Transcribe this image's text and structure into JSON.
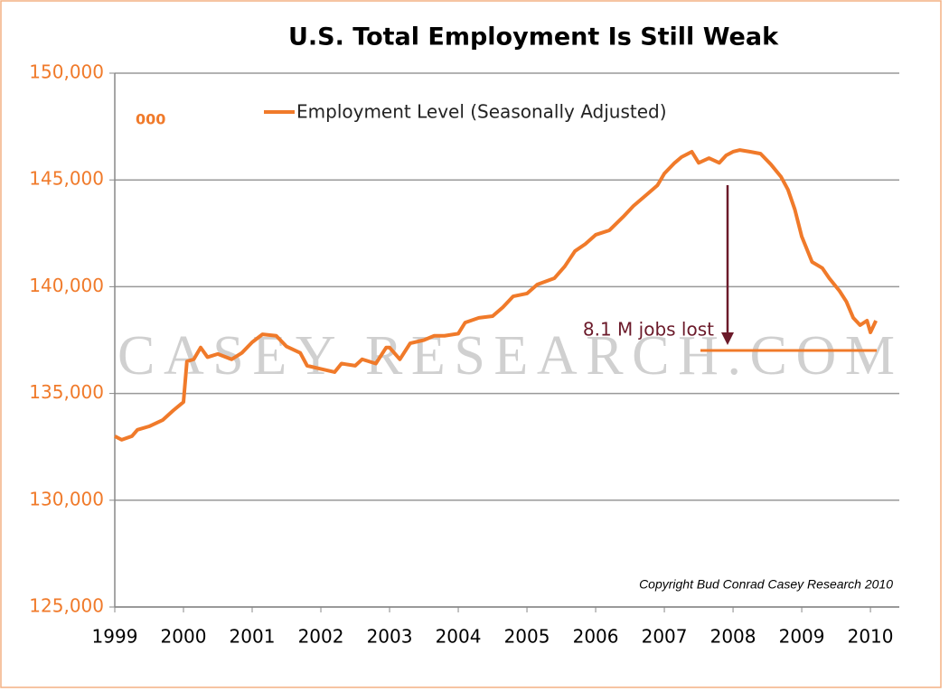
{
  "chart_data": {
    "type": "line",
    "title": "U.S. Total Employment Is Still Weak",
    "unit_label": "000",
    "annotation": "8.1 M jobs lost",
    "copyright": "Copyright Bud Conrad Casey Research 2010",
    "watermark": "CASEY RESEARCH.COM",
    "x": [
      1999.0,
      1999.1,
      1999.25,
      1999.33,
      1999.5,
      1999.7,
      1999.85,
      2000.0,
      2000.05,
      2000.15,
      2000.25,
      2000.35,
      2000.5,
      2000.7,
      2000.85,
      2001.0,
      2001.15,
      2001.35,
      2001.5,
      2001.7,
      2001.8,
      2002.0,
      2002.2,
      2002.3,
      2002.5,
      2002.6,
      2002.8,
      2002.95,
      2003.0,
      2003.15,
      2003.3,
      2003.5,
      2003.65,
      2003.8,
      2004.0,
      2004.1,
      2004.3,
      2004.5,
      2004.65,
      2004.8,
      2005.0,
      2005.15,
      2005.4,
      2005.55,
      2005.7,
      2005.85,
      2006.0,
      2006.2,
      2006.4,
      2006.55,
      2006.75,
      2006.9,
      2007.0,
      2007.15,
      2007.25,
      2007.4,
      2007.5,
      2007.65,
      2007.8,
      2007.9,
      2008.0,
      2008.1,
      2008.25,
      2008.4,
      2008.55,
      2008.7,
      2008.8,
      2008.9,
      2009.0,
      2009.15,
      2009.3,
      2009.4,
      2009.55,
      2009.65,
      2009.75,
      2009.85,
      2009.95,
      2010.0,
      2010.08
    ],
    "series": [
      {
        "name": "Employment Level (Seasonally Adjusted)",
        "color": "#f07a2a",
        "values": [
          133000,
          132830,
          133000,
          133300,
          133460,
          133760,
          134200,
          134600,
          136500,
          136600,
          137150,
          136700,
          136850,
          136600,
          136900,
          137400,
          137770,
          137700,
          137200,
          136900,
          136300,
          136150,
          136000,
          136400,
          136300,
          136600,
          136400,
          137150,
          137150,
          136600,
          137350,
          137500,
          137700,
          137700,
          137800,
          138320,
          138540,
          138620,
          139040,
          139550,
          139680,
          140100,
          140400,
          140950,
          141670,
          142000,
          142430,
          142640,
          143270,
          143780,
          144330,
          144750,
          145300,
          145800,
          146070,
          146320,
          145800,
          146020,
          145800,
          146150,
          146320,
          146400,
          146320,
          146230,
          145730,
          145140,
          144540,
          143610,
          142350,
          141160,
          140870,
          140400,
          139800,
          139300,
          138540,
          138200,
          138410,
          137860,
          138410
        ]
      }
    ],
    "xlim": [
      1999,
      2010.42
    ],
    "xticks": [
      1999,
      2000,
      2001,
      2002,
      2003,
      2004,
      2005,
      2006,
      2007,
      2008,
      2009,
      2010
    ],
    "ylim": [
      125000,
      150000
    ],
    "yticks": [
      {
        "value": 125000,
        "label": "125,000"
      },
      {
        "value": 130000,
        "label": "130,000"
      },
      {
        "value": 135000,
        "label": "135,000"
      },
      {
        "value": 140000,
        "label": "140,000"
      },
      {
        "value": 145000,
        "label": "145,000"
      },
      {
        "value": 150000,
        "label": "150,000"
      }
    ],
    "grid": true
  }
}
